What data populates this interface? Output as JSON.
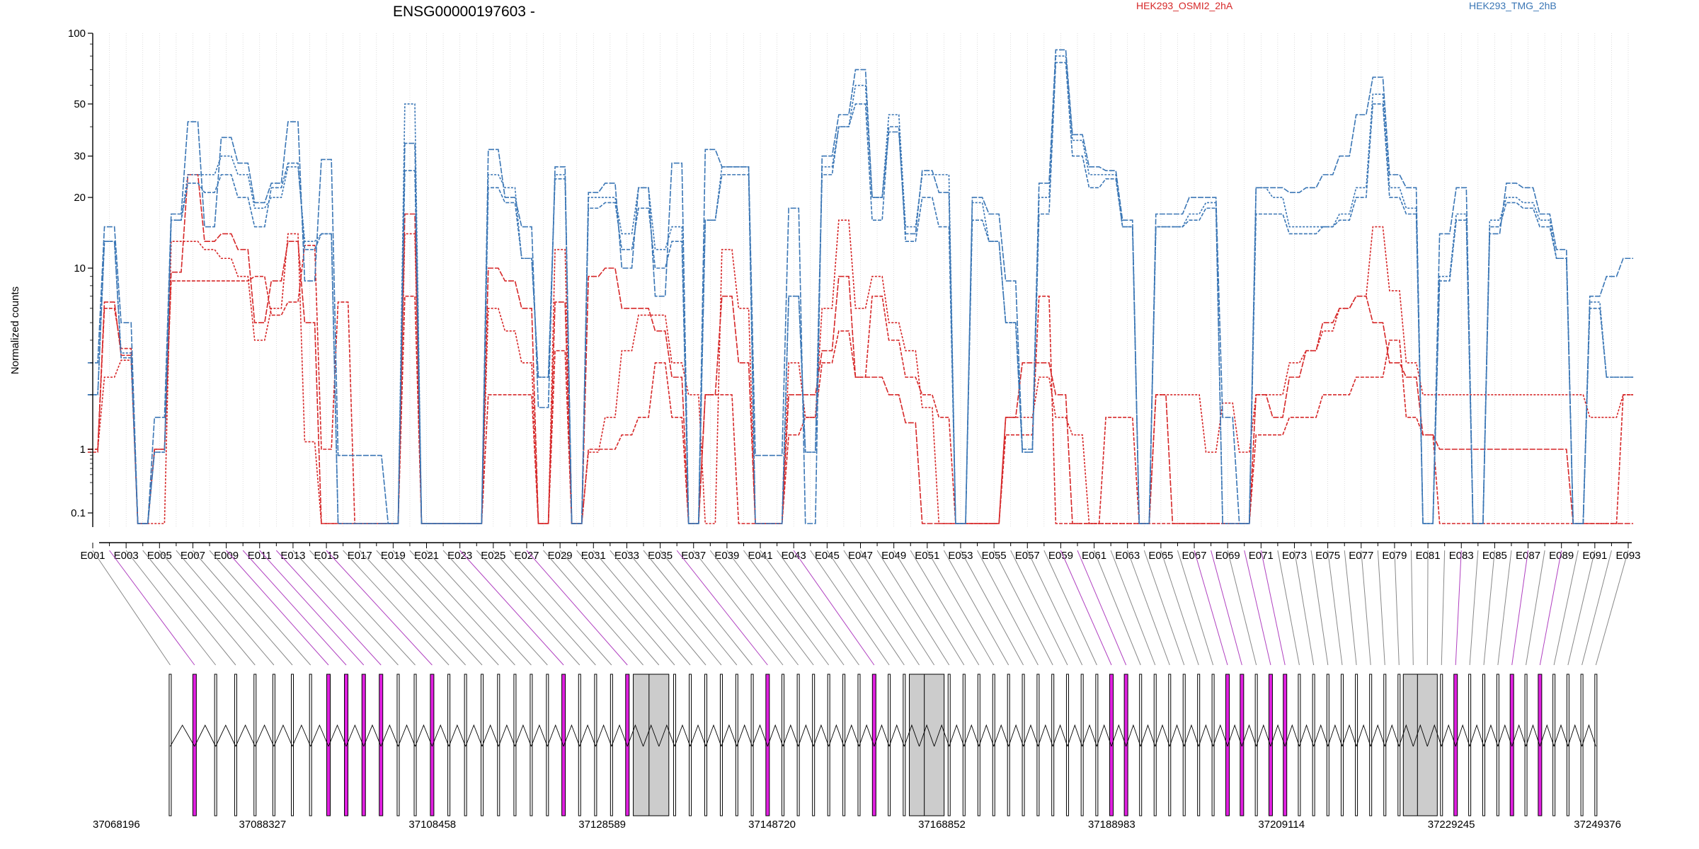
{
  "chart_data": {
    "type": "line",
    "title": "ENSG00000197603 -",
    "ylabel": "Normalized counts",
    "xlabel": "",
    "y_scale": "log",
    "ylim": [
      0.08,
      100
    ],
    "y_ticks": [
      0.1,
      1,
      10,
      20,
      30,
      50,
      100
    ],
    "y_tick_labels": [
      "0.1",
      "1",
      "10",
      "20",
      "30",
      "50",
      "100"
    ],
    "grid": "vertical dotted lines at each exon",
    "legend_placement": "top",
    "x_tick_labels": [
      "E001",
      "E003",
      "E005",
      "E007",
      "E009",
      "E011",
      "E013",
      "E015",
      "E017",
      "E019",
      "E021",
      "E023",
      "E025",
      "E027",
      "E029",
      "E031",
      "E033",
      "E035",
      "E037",
      "E039",
      "E041",
      "E043",
      "E045",
      "E047",
      "E049",
      "E051",
      "E053",
      "E055",
      "E057",
      "E059",
      "E061",
      "E063",
      "E065",
      "E067",
      "E069",
      "E071",
      "E073",
      "E075",
      "E077",
      "E079",
      "E081",
      "E083",
      "E085",
      "E087",
      "E089",
      "E091",
      "E093"
    ],
    "series": [
      {
        "name": "HEK293_OSMI2_2hA",
        "color": "#d62728",
        "style": "dashed",
        "values": [
          0.9,
          6,
          3.6,
          0.08,
          1,
          8.5,
          8.5,
          8.5,
          8.5,
          8.5,
          9,
          5.5,
          6.5,
          12.5,
          1,
          6.5,
          0.08,
          0.08,
          0.08,
          7,
          0.08,
          0.08,
          0.08,
          0.08,
          2,
          2,
          2,
          0.08,
          3.5,
          0.08,
          1,
          1,
          1.2,
          1.5,
          3,
          1.5,
          0.08,
          2,
          2,
          0.08,
          0.08,
          0.08,
          1.2,
          1.5,
          3,
          4.5,
          2.5,
          7,
          4,
          2.5,
          2,
          1.5,
          0.08,
          0.08,
          0.08,
          1.2,
          1.2,
          7,
          0.08,
          0.08,
          0.08,
          1.5,
          1.5,
          0.08,
          0.08,
          0.08,
          0.08,
          0.08,
          0.08,
          0.08,
          1.2,
          1.2,
          1.5,
          1.5,
          2,
          2,
          2.5,
          2.5,
          4,
          1.5,
          1.2,
          0.08,
          0.08,
          0.08,
          0.08,
          0.08,
          0.08,
          0.08,
          0.08,
          0.08,
          0.08,
          0.08,
          2
        ]
      },
      {
        "name": "HEK293_OSMI2_2hA",
        "color": "#d62728",
        "style": "dashed",
        "values": [
          1,
          2.5,
          3.1,
          0.08,
          0.08,
          13,
          13,
          12,
          11,
          9,
          4,
          6,
          14,
          1.1,
          0.08,
          0.08,
          0.08,
          0.08,
          0.08,
          14,
          0.08,
          0.08,
          0.08,
          0.08,
          6,
          4.5,
          3,
          0.08,
          12,
          0.08,
          0.9,
          1.5,
          3.5,
          5.5,
          5.5,
          3,
          2,
          0.08,
          12,
          6,
          0.08,
          0.08,
          3,
          1.5,
          6,
          16,
          6,
          9,
          5,
          3.5,
          1.7,
          0.08,
          0.08,
          0.08,
          0.08,
          1.5,
          1.5,
          2.5,
          1.5,
          1.2,
          0.08,
          0.08,
          0.08,
          0.08,
          2,
          2,
          2,
          0.9,
          1.8,
          0.9,
          2,
          2,
          3,
          3.5,
          4.5,
          6,
          7,
          15,
          7.5,
          3,
          2,
          2,
          2,
          2,
          2,
          2,
          2,
          2,
          2,
          2,
          1.5,
          1.5,
          2
        ]
      },
      {
        "name": "HEK293_OSMI2_2hA",
        "color": "#d62728",
        "style": "dashed",
        "values": [
          1,
          6.5,
          3.3,
          0.08,
          1,
          9.5,
          25,
          13,
          14,
          12,
          5,
          8.5,
          13,
          5,
          0.08,
          0.08,
          0.08,
          0.08,
          0.08,
          17,
          0.08,
          0.08,
          0.08,
          0.08,
          10,
          8.5,
          6,
          0.08,
          6.5,
          0.08,
          9,
          10,
          6,
          6,
          4.5,
          2.5,
          0.08,
          2,
          7,
          3,
          0.08,
          0.08,
          2,
          2,
          3.5,
          9,
          2.5,
          2.5,
          2,
          1.4,
          0.08,
          0.08,
          0.08,
          0.08,
          0.08,
          1.5,
          3,
          3,
          2,
          0.08,
          0.08,
          0.08,
          0.08,
          0.08,
          2,
          0.08,
          0.08,
          0.08,
          0.08,
          0.08,
          2,
          1.5,
          2.5,
          3.5,
          5,
          6,
          7,
          5,
          3,
          2.5,
          1.2,
          1,
          1,
          1,
          1,
          1,
          1,
          1,
          1,
          0.08,
          0.08,
          0.08,
          0.08
        ]
      },
      {
        "name": "HEK293_TMG_2hB",
        "color": "#3a76b5",
        "style": "dashed",
        "values": [
          2,
          13,
          3.2,
          0.08,
          0.9,
          16,
          23,
          21,
          25,
          20,
          15,
          22,
          28,
          12,
          14,
          0.08,
          0.08,
          0.08,
          0.08,
          26,
          0.08,
          0.08,
          0.08,
          0.08,
          22,
          19,
          11,
          2.5,
          24,
          0.08,
          18,
          19,
          12,
          18,
          10,
          13,
          0.08,
          16,
          25,
          25,
          0.08,
          0.08,
          7,
          0.9,
          25,
          40,
          50,
          16,
          40,
          13,
          20,
          15,
          0.08,
          16,
          13,
          5,
          0.9,
          17,
          75,
          30,
          22,
          24,
          15,
          0.08,
          15,
          15,
          16,
          18,
          0.08,
          0.08,
          17,
          17,
          14,
          14,
          15,
          16,
          20,
          50,
          20,
          17,
          0.08,
          8.5,
          16,
          0.08,
          15,
          19,
          18,
          15,
          11,
          0.08,
          6,
          2.5,
          2.5
        ]
      },
      {
        "name": "HEK293_TMG_2hB",
        "color": "#3a76b5",
        "style": "dashed",
        "values": [
          2,
          13,
          3.4,
          0.08,
          0.9,
          16,
          25,
          25,
          30,
          25,
          18,
          20,
          27,
          13,
          14,
          0.08,
          0.08,
          0.08,
          0.08,
          50,
          0.08,
          0.08,
          0.08,
          0.08,
          25,
          22,
          11,
          2.5,
          25,
          0.08,
          20,
          20,
          14,
          22,
          12,
          15,
          0.08,
          16,
          27,
          27,
          0.08,
          0.08,
          7,
          0.9,
          27,
          40,
          60,
          20,
          45,
          15,
          25,
          25,
          0.08,
          19,
          13,
          5,
          0.9,
          20,
          80,
          35,
          25,
          25,
          15,
          0.08,
          15,
          15,
          17,
          19,
          0.08,
          0.08,
          22,
          20,
          15,
          15,
          15,
          17,
          22,
          55,
          22,
          18,
          0.08,
          9,
          17,
          0.08,
          16,
          20,
          19,
          16,
          11,
          0.08,
          6.5,
          2.5,
          2.5
        ]
      },
      {
        "name": "HEK293_TMG_2hB",
        "color": "#3a76b5",
        "style": "dashed",
        "values": [
          3,
          15,
          5,
          0.08,
          1.5,
          17,
          42,
          15,
          36,
          28,
          19,
          23,
          42,
          8.5,
          29,
          0.8,
          0.8,
          0.8,
          0.08,
          34,
          0.08,
          0.08,
          0.08,
          0.08,
          32,
          20,
          15,
          1.7,
          27,
          0.08,
          21,
          23,
          10,
          22,
          7,
          28,
          0.08,
          32,
          27,
          27,
          0.8,
          0.8,
          18,
          0.08,
          30,
          45,
          70,
          20,
          38,
          14,
          26,
          21,
          0.08,
          20,
          17,
          8.5,
          1,
          23,
          85,
          37,
          27,
          26,
          16,
          0.08,
          17,
          17,
          20,
          20,
          1.5,
          0.08,
          22,
          22,
          21,
          22,
          25,
          30,
          45,
          65,
          25,
          22,
          0.08,
          14,
          22,
          0.08,
          14,
          23,
          22,
          17,
          12,
          0.08,
          7,
          9,
          11
        ]
      }
    ],
    "gene_coordinates": {
      "tick_labels": [
        "37068196",
        "37088327",
        "37108458",
        "37128589",
        "37148720",
        "37168852",
        "37188983",
        "37209114",
        "37229245",
        "37249376"
      ]
    },
    "legend": [
      {
        "label": "HEK293_OSMI2_2hA",
        "color": "#d62728"
      },
      {
        "label": "HEK293_TMG_2hB",
        "color": "#3a76b5"
      }
    ]
  }
}
